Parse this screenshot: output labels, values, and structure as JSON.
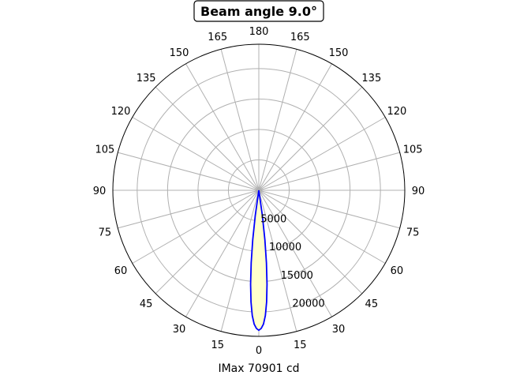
{
  "chart_data": {
    "type": "polar",
    "title": "Beam angle 9.0°",
    "xlabel": "IMax 70901 cd",
    "angle_tick_labels": [
      "0",
      "15",
      "30",
      "45",
      "60",
      "75",
      "90",
      "105",
      "120",
      "135",
      "150",
      "165",
      "180",
      "165",
      "150",
      "135",
      "120",
      "105",
      "90",
      "75",
      "60",
      "45",
      "30",
      "15"
    ],
    "radial_ticks": [
      5000,
      10000,
      15000,
      20000
    ],
    "radial_tick_labels": [
      "5000",
      "10000",
      "15000",
      "20000"
    ],
    "rlim": [
      0,
      24000
    ],
    "grid": true,
    "series": [
      {
        "color": "#0000ff",
        "fill": "#ffffcc",
        "angles_deg": [
          -9,
          -8,
          -7,
          -6,
          -5,
          -4,
          -3,
          -2,
          -1,
          0,
          1,
          2,
          3,
          4,
          5,
          6,
          7,
          8,
          9
        ],
        "values": [
          0,
          4200,
          8200,
          12000,
          15500,
          18400,
          20600,
          22000,
          22700,
          23000,
          22700,
          22000,
          20600,
          18400,
          15500,
          12000,
          8200,
          4200,
          0
        ]
      }
    ]
  }
}
